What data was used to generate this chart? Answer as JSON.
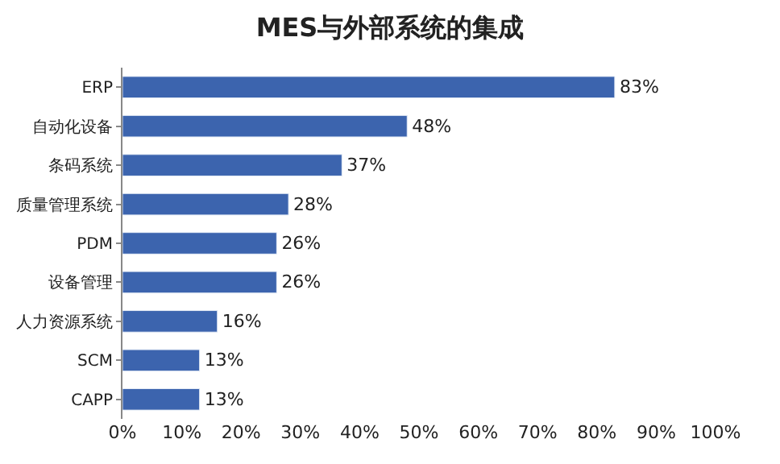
{
  "chart_data": {
    "type": "bar",
    "orientation": "horizontal",
    "title": "MES与外部系统的集成",
    "categories": [
      "ERP",
      "自动化设备",
      "条码系统",
      "质量管理系统",
      "PDM",
      "设备管理",
      "人力资源系统",
      "SCM",
      "CAPP"
    ],
    "values": [
      83,
      48,
      37,
      28,
      26,
      26,
      16,
      13,
      13
    ],
    "value_labels": [
      "83%",
      "48%",
      "37%",
      "28%",
      "26%",
      "26%",
      "16%",
      "13%",
      "13%"
    ],
    "color": "#3c64ae",
    "xlim": [
      0,
      100
    ],
    "xticks": [
      {
        "value": 0,
        "label": "0%"
      },
      {
        "value": 10,
        "label": "10%"
      },
      {
        "value": 20,
        "label": "20%"
      },
      {
        "value": 30,
        "label": "30%"
      },
      {
        "value": 40,
        "label": "40%"
      },
      {
        "value": 50,
        "label": "50%"
      },
      {
        "value": 60,
        "label": "60%"
      },
      {
        "value": 70,
        "label": "70%"
      },
      {
        "value": 80,
        "label": "80%"
      },
      {
        "value": 90,
        "label": "90%"
      },
      {
        "value": 100,
        "label": "100%"
      }
    ],
    "grid": false,
    "legend": false
  }
}
